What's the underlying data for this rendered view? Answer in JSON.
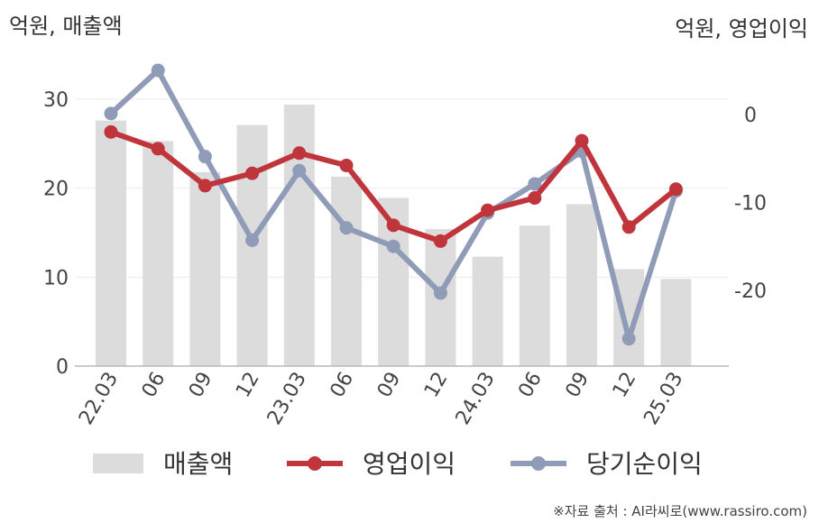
{
  "chart_data": {
    "type": "bar",
    "categories": [
      "22.03",
      "06",
      "09",
      "12",
      "23.03",
      "06",
      "09",
      "12",
      "24.03",
      "06",
      "09",
      "12",
      "25.03"
    ],
    "left_axis": {
      "label": "억원, 매출액",
      "ylim": [
        0,
        30
      ],
      "ticks": [
        "0",
        "10",
        "20",
        "30"
      ]
    },
    "right_axis": {
      "label": "억원, 영업이익",
      "ylim": [
        -28.6,
        4.9
      ],
      "ticks": [
        "0",
        "-10",
        "-20"
      ]
    },
    "series": [
      {
        "name": "매출액",
        "kind": "bar",
        "axis": "left",
        "color": "#dcdcdc",
        "values": [
          27.6,
          25.3,
          21.8,
          27.1,
          29.4,
          21.3,
          18.9,
          15.4,
          12.3,
          15.8,
          18.2,
          10.9,
          9.8
        ]
      },
      {
        "name": "영업이익",
        "kind": "line",
        "axis": "right",
        "color": "#c0343b",
        "values": [
          -2.0,
          -3.9,
          -8.1,
          -6.7,
          -4.4,
          -5.8,
          -12.6,
          -14.4,
          -10.9,
          -9.5,
          -3.0,
          -12.8,
          -8.5
        ]
      },
      {
        "name": "당기순이익",
        "kind": "line",
        "axis": "right",
        "color": "#8f9bb7",
        "values": [
          0.1,
          5.0,
          -4.8,
          -14.3,
          -6.4,
          -12.9,
          -15.0,
          -20.3,
          -11.2,
          -7.9,
          -4.2,
          -25.5,
          -8.7
        ]
      }
    ],
    "grid": true,
    "legend": "bottom"
  },
  "source": "※자료 출처 : AI라씨로(www.rassiro.com)"
}
